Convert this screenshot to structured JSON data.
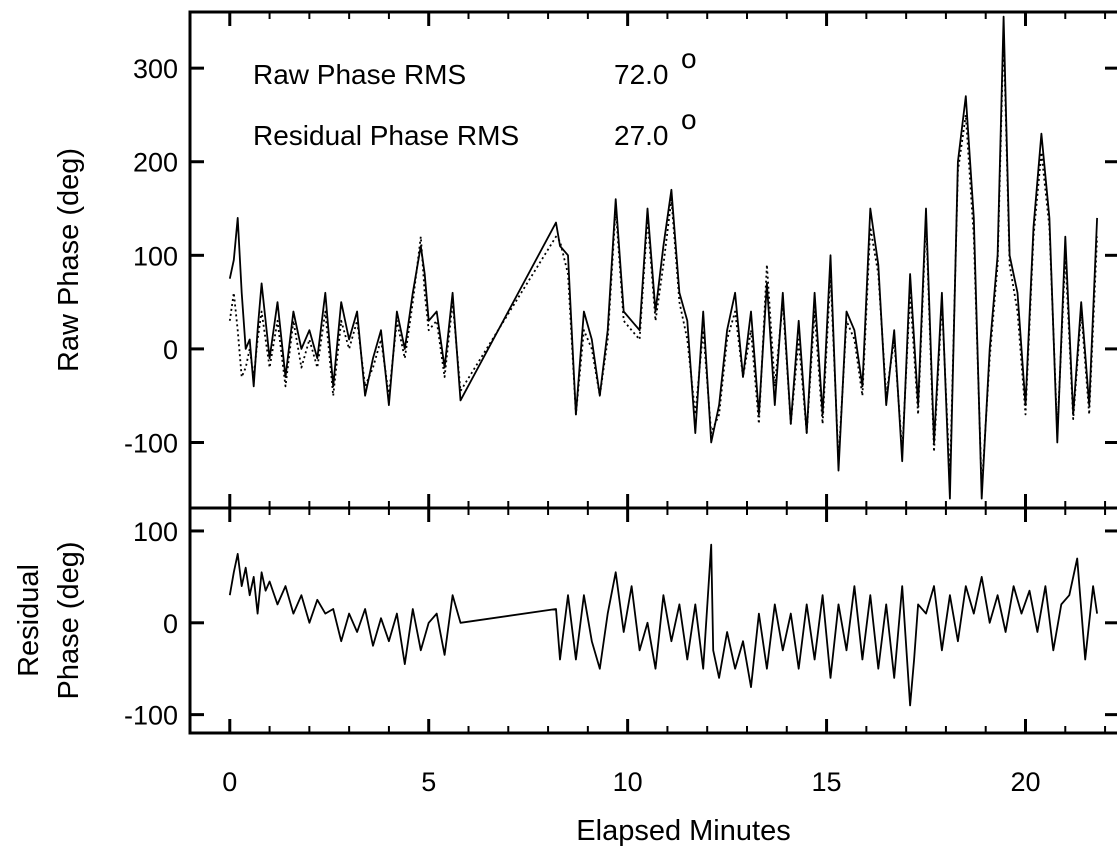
{
  "chart_data": [
    {
      "type": "line",
      "title": "",
      "xlabel": "",
      "ylabel": "Raw Phase (deg)",
      "xlim": [
        -1,
        22.3
      ],
      "ylim": [
        -170,
        360
      ],
      "xticks": [
        0,
        5,
        10,
        15,
        20
      ],
      "yticks": [
        -100,
        0,
        100,
        200,
        300
      ],
      "ytick_labels": [
        "-100",
        "0",
        "100",
        "200",
        "300"
      ],
      "annotations": [
        {
          "label": "Raw Phase RMS",
          "value": "72.0",
          "unit": "o"
        },
        {
          "label": "Residual Phase RMS",
          "value": "27.0",
          "unit": "o"
        }
      ],
      "series": [
        {
          "style": "solid",
          "x": [
            0.0,
            0.1,
            0.2,
            0.3,
            0.4,
            0.5,
            0.6,
            0.7,
            0.8,
            0.9,
            1.0,
            1.2,
            1.4,
            1.6,
            1.8,
            2.0,
            2.2,
            2.4,
            2.6,
            2.8,
            3.0,
            3.2,
            3.4,
            3.6,
            3.8,
            4.0,
            4.2,
            4.4,
            4.6,
            4.8,
            4.9,
            5.0,
            5.2,
            5.4,
            5.6,
            5.8,
            8.2,
            8.3,
            8.5,
            8.7,
            8.9,
            9.1,
            9.3,
            9.5,
            9.7,
            9.9,
            10.1,
            10.3,
            10.5,
            10.7,
            10.9,
            11.1,
            11.3,
            11.5,
            11.7,
            11.9,
            12.1,
            12.3,
            12.5,
            12.7,
            12.9,
            13.1,
            13.3,
            13.5,
            13.7,
            13.9,
            14.1,
            14.3,
            14.5,
            14.7,
            14.9,
            15.1,
            15.3,
            15.5,
            15.7,
            15.9,
            16.1,
            16.3,
            16.5,
            16.7,
            16.9,
            17.1,
            17.3,
            17.5,
            17.7,
            17.9,
            18.1,
            18.3,
            18.5,
            18.7,
            18.9,
            19.1,
            19.3,
            19.45,
            19.6,
            19.8,
            20.0,
            20.2,
            20.4,
            20.6,
            20.8,
            21.0,
            21.2,
            21.4,
            21.6,
            21.8
          ],
          "y": [
            75,
            95,
            140,
            60,
            0,
            10,
            -40,
            20,
            70,
            30,
            -10,
            50,
            -30,
            40,
            0,
            20,
            -10,
            60,
            -40,
            50,
            10,
            40,
            -50,
            -10,
            20,
            -60,
            40,
            0,
            60,
            110,
            80,
            30,
            40,
            -20,
            60,
            -55,
            135,
            110,
            100,
            -70,
            40,
            10,
            -50,
            20,
            160,
            40,
            30,
            20,
            150,
            40,
            110,
            170,
            60,
            30,
            -90,
            40,
            -100,
            -60,
            20,
            60,
            -30,
            40,
            -70,
            70,
            -60,
            60,
            -80,
            30,
            -90,
            60,
            -70,
            100,
            -130,
            40,
            20,
            -40,
            150,
            90,
            -60,
            20,
            -120,
            80,
            -60,
            150,
            -100,
            60,
            -160,
            200,
            270,
            140,
            -160,
            0,
            100,
            355,
            100,
            60,
            -60,
            130,
            230,
            140,
            -100,
            120,
            -70,
            50,
            -60,
            140
          ]
        },
        {
          "style": "dotted",
          "x": [
            0.0,
            0.1,
            0.2,
            0.3,
            0.4,
            0.5,
            0.6,
            0.7,
            0.8,
            0.9,
            1.0,
            1.2,
            1.4,
            1.6,
            1.8,
            2.0,
            2.2,
            2.4,
            2.6,
            2.8,
            3.0,
            3.2,
            3.4,
            3.6,
            3.8,
            4.0,
            4.2,
            4.4,
            4.6,
            4.8,
            4.9,
            5.0,
            5.2,
            5.4,
            5.6,
            5.8,
            8.2,
            8.3,
            8.5,
            8.7,
            8.9,
            9.1,
            9.3,
            9.5,
            9.7,
            9.9,
            10.1,
            10.3,
            10.5,
            10.7,
            10.9,
            11.1,
            11.3,
            11.5,
            11.7,
            11.9,
            12.1,
            12.3,
            12.5,
            12.7,
            12.9,
            13.1,
            13.3,
            13.5,
            13.7,
            13.9,
            14.1,
            14.3,
            14.5,
            14.7,
            14.9,
            15.1,
            15.3,
            15.5,
            15.7,
            15.9,
            16.1,
            16.3,
            16.5,
            16.7,
            16.9,
            17.1,
            17.3,
            17.5,
            17.7,
            17.9,
            18.1,
            18.3,
            18.5,
            18.7,
            18.9,
            19.1,
            19.3,
            19.45,
            19.6,
            19.8,
            20.0,
            20.2,
            20.4,
            20.6,
            20.8,
            21.0,
            21.2,
            21.4,
            21.6,
            21.8
          ],
          "y": [
            30,
            60,
            20,
            -30,
            -20,
            0,
            -30,
            10,
            40,
            10,
            -20,
            30,
            -40,
            30,
            -20,
            10,
            -20,
            40,
            -50,
            30,
            0,
            30,
            -40,
            -20,
            10,
            -50,
            30,
            -10,
            50,
            120,
            60,
            20,
            30,
            -30,
            50,
            -45,
            120,
            115,
            80,
            -70,
            20,
            0,
            -50,
            10,
            150,
            30,
            20,
            10,
            140,
            30,
            90,
            160,
            50,
            10,
            -70,
            20,
            -90,
            -70,
            10,
            40,
            -30,
            20,
            -80,
            90,
            -40,
            50,
            -80,
            10,
            -90,
            40,
            -80,
            80,
            -120,
            30,
            10,
            -50,
            130,
            80,
            -50,
            10,
            -110,
            60,
            -70,
            140,
            -110,
            50,
            -140,
            190,
            250,
            120,
            -150,
            -10,
            90,
            340,
            90,
            40,
            -70,
            120,
            210,
            130,
            -90,
            100,
            -75,
            40,
            -70,
            120
          ]
        }
      ]
    },
    {
      "type": "line",
      "title": "",
      "xlabel": "Elapsed Minutes",
      "ylabel_lines": [
        "Residual",
        "Phase (deg)"
      ],
      "xlim": [
        -1,
        22.3
      ],
      "ylim": [
        -120,
        125
      ],
      "xticks": [
        0,
        5,
        10,
        15,
        20
      ],
      "xtick_labels": [
        "0",
        "5",
        "10",
        "15",
        "20"
      ],
      "yticks": [
        -100,
        0,
        100
      ],
      "ytick_labels": [
        "-100",
        "0",
        "100"
      ],
      "series": [
        {
          "style": "solid",
          "x": [
            0.0,
            0.1,
            0.2,
            0.3,
            0.4,
            0.5,
            0.6,
            0.7,
            0.8,
            0.9,
            1.0,
            1.2,
            1.4,
            1.6,
            1.8,
            2.0,
            2.2,
            2.4,
            2.6,
            2.8,
            3.0,
            3.2,
            3.4,
            3.6,
            3.8,
            4.0,
            4.2,
            4.4,
            4.6,
            4.8,
            5.0,
            5.2,
            5.4,
            5.6,
            5.8,
            8.2,
            8.3,
            8.5,
            8.7,
            8.9,
            9.1,
            9.3,
            9.5,
            9.7,
            9.9,
            10.1,
            10.3,
            10.5,
            10.7,
            10.9,
            11.1,
            11.3,
            11.5,
            11.7,
            11.9,
            12.1,
            12.15,
            12.3,
            12.5,
            12.7,
            12.9,
            13.1,
            13.3,
            13.5,
            13.7,
            13.9,
            14.1,
            14.3,
            14.5,
            14.7,
            14.9,
            15.1,
            15.3,
            15.5,
            15.7,
            15.9,
            16.1,
            16.3,
            16.5,
            16.7,
            16.9,
            17.1,
            17.2,
            17.3,
            17.5,
            17.7,
            17.9,
            18.1,
            18.3,
            18.5,
            18.7,
            18.9,
            19.1,
            19.3,
            19.5,
            19.7,
            19.9,
            20.1,
            20.3,
            20.5,
            20.7,
            20.9,
            21.1,
            21.3,
            21.5,
            21.7,
            21.8
          ],
          "y": [
            30,
            55,
            75,
            40,
            60,
            30,
            50,
            10,
            55,
            35,
            45,
            20,
            40,
            10,
            30,
            0,
            25,
            10,
            15,
            -20,
            10,
            -10,
            15,
            -25,
            5,
            -20,
            10,
            -45,
            15,
            -30,
            0,
            10,
            -35,
            30,
            0,
            15,
            -40,
            30,
            -40,
            30,
            -20,
            -50,
            10,
            55,
            -10,
            40,
            -30,
            0,
            -50,
            30,
            -20,
            20,
            -40,
            20,
            -50,
            85,
            -30,
            -60,
            -10,
            -50,
            -20,
            -70,
            10,
            -50,
            20,
            -30,
            10,
            -50,
            20,
            -40,
            30,
            -60,
            20,
            -30,
            40,
            -40,
            30,
            -50,
            20,
            -60,
            40,
            -90,
            -40,
            20,
            10,
            40,
            -30,
            30,
            -20,
            40,
            10,
            50,
            0,
            30,
            -10,
            40,
            10,
            35,
            -10,
            40,
            -30,
            20,
            30,
            70,
            -40,
            40,
            10
          ]
        }
      ]
    }
  ]
}
